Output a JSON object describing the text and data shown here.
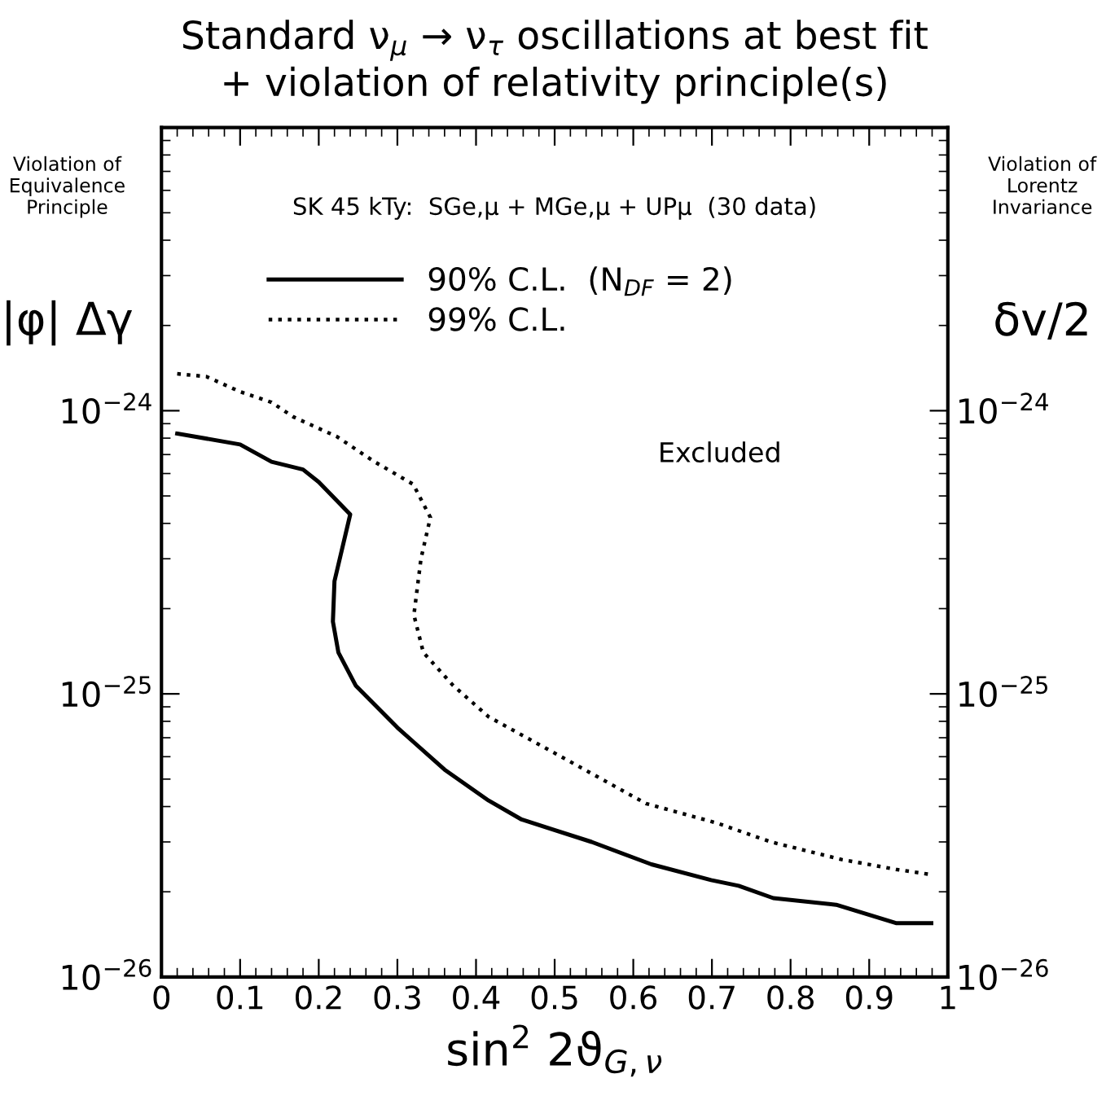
{
  "chart_data": {
    "type": "line",
    "title": "Standard ν$_{μ}$ → ν$_{τ}$ oscillations at best fit\n+ violation of relativity principle(s)",
    "xlabel": "sin$^{2}$ 2ϑ$_{G,ν}$",
    "ylabel": "|φ| Δγ",
    "y2label": "δv/2",
    "annotations": [
      "Violation of\nEquivalence\nPrinciple",
      "Violation of\nLorentz\nInvariance",
      "SK 45 kTy:  SGe,μ + MGe,μ + UPμ  (30 data)",
      "Excluded"
    ],
    "series": [
      {
        "name": "90% C.L.  (N$_{DF}$ = 2)",
        "color": "#000000",
        "line_style": "solid",
        "x": [
          0.02,
          0.1,
          0.14,
          0.18,
          0.2,
          0.24,
          0.22,
          0.218,
          0.225,
          0.247,
          0.3,
          0.36,
          0.416,
          0.458,
          0.547,
          0.623,
          0.699,
          0.734,
          0.778,
          0.858,
          0.934,
          0.979
        ],
        "values": [
          8.3e-25,
          7.6e-25,
          6.6e-25,
          6.2e-25,
          5.6e-25,
          4.3e-25,
          2.5e-25,
          1.8e-25,
          1.4e-25,
          1.07e-25,
          7.6e-26,
          5.4e-26,
          4.2e-26,
          3.6e-26,
          3e-26,
          2.5e-26,
          2.2e-26,
          2.1e-26,
          1.9e-26,
          1.8e-26,
          1.55e-26,
          1.55e-26
        ]
      },
      {
        "name": "99% C.L.",
        "color": "#000000",
        "line_style": "dotted",
        "x": [
          0.02,
          0.057,
          0.099,
          0.14,
          0.168,
          0.223,
          0.271,
          0.32,
          0.342,
          0.33,
          0.321,
          0.333,
          0.371,
          0.416,
          0.499,
          0.616,
          0.706,
          0.775,
          0.865,
          0.934,
          0.979
        ],
        "values": [
          1.35e-24,
          1.32e-24,
          1.17e-24,
          1.07e-24,
          9.5e-25,
          8.1e-25,
          6.6e-25,
          5.5e-25,
          4.2e-25,
          3e-25,
          1.9e-25,
          1.4e-25,
          1.07e-25,
          8.3e-26,
          6.2e-26,
          4.1e-26,
          3.5e-26,
          3e-26,
          2.6e-26,
          2.4e-26,
          2.3e-26
        ]
      }
    ],
    "xlim": [
      0,
      1
    ],
    "xticks": [
      0,
      0.1,
      0.2,
      0.3,
      0.4,
      0.5,
      0.6,
      0.7,
      0.8,
      0.9,
      1
    ],
    "ylim": [
      1e-26,
      1e-23
    ],
    "yticks": [
      {
        "value": 1e-26,
        "label": "10$^{−26}$"
      },
      {
        "value": 1e-25,
        "label": "10$^{−25}$"
      },
      {
        "value": 1e-24,
        "label": "10$^{−24}$"
      },
      {
        "value": 1e-23,
        "label": null
      }
    ],
    "log": "y",
    "grid": false,
    "legend": "top left"
  }
}
